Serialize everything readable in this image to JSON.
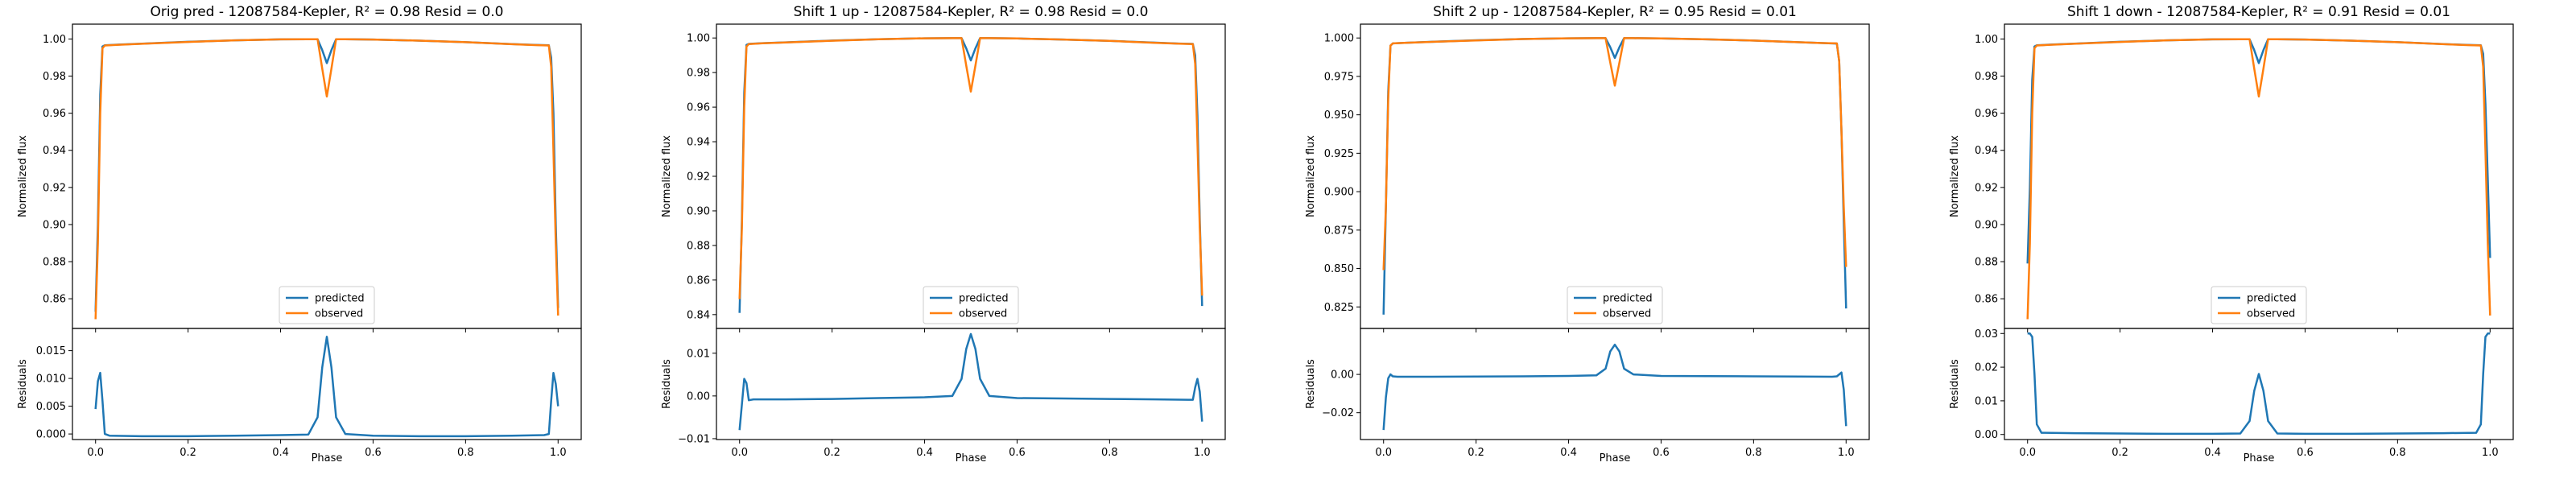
{
  "colors": {
    "predicted": "#1f77b4",
    "observed": "#ff7f0e"
  },
  "chart_data": [
    {
      "type": "line",
      "title_prefix": "Orig pred - 12087584-Kepler, ",
      "r2_label": "R² = 0.98",
      "resid_label": "Resid = 0.0",
      "xlabel": "Phase",
      "ylabel_top": "Normalized flux",
      "ylabel_bottom": "Residuals",
      "xlim": [
        -0.05,
        1.05
      ],
      "xticks": [
        0.0,
        0.2,
        0.4,
        0.6,
        0.8,
        1.0
      ],
      "xtick_labels": [
        "0.0",
        "0.2",
        "0.4",
        "0.6",
        "0.8",
        "1.0"
      ],
      "ylim_top": [
        0.844,
        1.008
      ],
      "yticks_top": [
        0.86,
        0.88,
        0.9,
        0.92,
        0.94,
        0.96,
        0.98,
        1.0
      ],
      "ytick_labels_top": [
        "0.86",
        "0.88",
        "0.90",
        "0.92",
        "0.94",
        "0.96",
        "0.98",
        "1.00"
      ],
      "ylim_bottom": [
        -0.001,
        0.019
      ],
      "yticks_bottom": [
        0.0,
        0.005,
        0.01,
        0.015
      ],
      "ytick_labels_bottom": [
        "0.000",
        "0.005",
        "0.010",
        "0.015"
      ],
      "legend": [
        "predicted",
        "observed"
      ],
      "series": {
        "predicted": {
          "x": [
            0.0,
            0.005,
            0.01,
            0.015,
            0.02,
            0.05,
            0.1,
            0.2,
            0.3,
            0.4,
            0.46,
            0.48,
            0.49,
            0.5,
            0.51,
            0.52,
            0.54,
            0.6,
            0.7,
            0.8,
            0.9,
            0.95,
            0.98,
            0.985,
            0.99,
            0.995,
            1.0
          ],
          "y": [
            0.853,
            0.9,
            0.97,
            0.996,
            0.9966,
            0.997,
            0.9975,
            0.9985,
            0.9993,
            0.9998,
            0.9999,
            0.9999,
            0.994,
            0.987,
            0.994,
            0.9999,
            0.9999,
            0.9997,
            0.9991,
            0.9983,
            0.9973,
            0.9968,
            0.9966,
            0.99,
            0.96,
            0.9,
            0.855
          ]
        },
        "observed": {
          "x": [
            0.0,
            0.005,
            0.01,
            0.015,
            0.02,
            0.05,
            0.1,
            0.2,
            0.3,
            0.4,
            0.46,
            0.48,
            0.49,
            0.5,
            0.51,
            0.52,
            0.54,
            0.6,
            0.7,
            0.8,
            0.9,
            0.95,
            0.98,
            0.985,
            0.99,
            0.995,
            1.0
          ],
          "y": [
            0.849,
            0.89,
            0.96,
            0.995,
            0.9965,
            0.9969,
            0.9974,
            0.9984,
            0.9993,
            0.9998,
            0.9999,
            0.9999,
            0.984,
            0.969,
            0.984,
            0.9999,
            0.9999,
            0.9997,
            0.9991,
            0.9983,
            0.9972,
            0.9967,
            0.9965,
            0.985,
            0.94,
            0.89,
            0.851
          ]
        },
        "residuals": {
          "x": [
            0.0,
            0.005,
            0.01,
            0.015,
            0.02,
            0.03,
            0.1,
            0.2,
            0.3,
            0.4,
            0.46,
            0.48,
            0.49,
            0.5,
            0.51,
            0.52,
            0.54,
            0.6,
            0.7,
            0.8,
            0.9,
            0.97,
            0.98,
            0.985,
            0.99,
            0.995,
            1.0
          ],
          "y": [
            0.0045,
            0.0095,
            0.011,
            0.006,
            0.0,
            -0.0003,
            -0.0004,
            -0.0004,
            -0.0003,
            -0.0002,
            -0.0001,
            0.003,
            0.012,
            0.0175,
            0.012,
            0.003,
            0.0,
            -0.0003,
            -0.0004,
            -0.0004,
            -0.0003,
            -0.0002,
            0.0,
            0.006,
            0.011,
            0.009,
            0.005
          ]
        }
      }
    },
    {
      "type": "line",
      "title_prefix": "Shift 1 up - 12087584-Kepler, ",
      "r2_label": "R² = 0.98",
      "resid_label": "Resid = 0.0",
      "xlabel": "Phase",
      "ylabel_top": "Normalized flux",
      "ylabel_bottom": "Residuals",
      "xlim": [
        -0.05,
        1.05
      ],
      "xticks": [
        0.0,
        0.2,
        0.4,
        0.6,
        0.8,
        1.0
      ],
      "xtick_labels": [
        "0.0",
        "0.2",
        "0.4",
        "0.6",
        "0.8",
        "1.0"
      ],
      "ylim_top": [
        0.832,
        1.008
      ],
      "yticks_top": [
        0.84,
        0.86,
        0.88,
        0.9,
        0.92,
        0.94,
        0.96,
        0.98,
        1.0
      ],
      "ytick_labels_top": [
        "0.84",
        "0.86",
        "0.88",
        "0.90",
        "0.92",
        "0.94",
        "0.96",
        "0.98",
        "1.00"
      ],
      "ylim_bottom": [
        -0.0102,
        0.0158
      ],
      "yticks_bottom": [
        -0.01,
        0.0,
        0.01
      ],
      "ytick_labels_bottom": [
        "−0.01",
        "0.00",
        "0.01"
      ],
      "legend": [
        "predicted",
        "observed"
      ],
      "series": {
        "predicted": {
          "x": [
            0.0,
            0.005,
            0.01,
            0.015,
            0.02,
            0.05,
            0.1,
            0.2,
            0.3,
            0.4,
            0.46,
            0.48,
            0.49,
            0.5,
            0.51,
            0.52,
            0.54,
            0.6,
            0.7,
            0.8,
            0.9,
            0.95,
            0.98,
            0.985,
            0.99,
            0.995,
            1.0
          ],
          "y": [
            0.841,
            0.895,
            0.968,
            0.996,
            0.9966,
            0.997,
            0.9975,
            0.9985,
            0.9993,
            0.9998,
            0.9999,
            0.9999,
            0.994,
            0.987,
            0.994,
            0.9999,
            0.9999,
            0.9997,
            0.9991,
            0.9983,
            0.9973,
            0.9968,
            0.9966,
            0.99,
            0.955,
            0.895,
            0.845
          ]
        },
        "observed": {
          "x": [
            0.0,
            0.005,
            0.01,
            0.015,
            0.02,
            0.05,
            0.1,
            0.2,
            0.3,
            0.4,
            0.46,
            0.48,
            0.49,
            0.5,
            0.51,
            0.52,
            0.54,
            0.6,
            0.7,
            0.8,
            0.9,
            0.95,
            0.98,
            0.985,
            0.99,
            0.995,
            1.0
          ],
          "y": [
            0.849,
            0.89,
            0.96,
            0.995,
            0.9965,
            0.9969,
            0.9974,
            0.9984,
            0.9993,
            0.9998,
            0.9999,
            0.9999,
            0.984,
            0.969,
            0.984,
            0.9999,
            0.9999,
            0.9997,
            0.9991,
            0.9983,
            0.9972,
            0.9967,
            0.9965,
            0.985,
            0.94,
            0.89,
            0.851
          ]
        },
        "residuals": {
          "x": [
            0.0,
            0.005,
            0.01,
            0.015,
            0.02,
            0.03,
            0.1,
            0.2,
            0.3,
            0.4,
            0.46,
            0.48,
            0.49,
            0.5,
            0.51,
            0.52,
            0.54,
            0.6,
            0.7,
            0.8,
            0.9,
            0.97,
            0.98,
            0.985,
            0.99,
            0.995,
            1.0
          ],
          "y": [
            -0.008,
            -0.002,
            0.004,
            0.003,
            -0.001,
            -0.0008,
            -0.0008,
            -0.0007,
            -0.0005,
            -0.0003,
            0.0,
            0.004,
            0.011,
            0.0145,
            0.011,
            0.004,
            0.0,
            -0.0005,
            -0.0006,
            -0.0007,
            -0.0008,
            -0.0009,
            -0.0009,
            0.002,
            0.004,
            0.001,
            -0.006
          ]
        }
      }
    },
    {
      "type": "line",
      "title_prefix": "Shift 2 up - 12087584-Kepler, ",
      "r2_label": "R² = 0.95",
      "resid_label": "Resid = 0.01",
      "xlabel": "Phase",
      "ylabel_top": "Normalized flux",
      "ylabel_bottom": "Residuals",
      "xlim": [
        -0.05,
        1.05
      ],
      "xticks": [
        0.0,
        0.2,
        0.4,
        0.6,
        0.8,
        1.0
      ],
      "xtick_labels": [
        "0.0",
        "0.2",
        "0.4",
        "0.6",
        "0.8",
        "1.0"
      ],
      "ylim_top": [
        0.811,
        1.009
      ],
      "yticks_top": [
        0.825,
        0.85,
        0.875,
        0.9,
        0.925,
        0.95,
        0.975,
        1.0
      ],
      "ytick_labels_top": [
        "0.825",
        "0.850",
        "0.875",
        "0.900",
        "0.925",
        "0.950",
        "0.975",
        "1.000"
      ],
      "ylim_bottom": [
        -0.034,
        0.024
      ],
      "yticks_bottom": [
        -0.02,
        0.0
      ],
      "ytick_labels_bottom": [
        "−0.02",
        "0.00"
      ],
      "legend": [
        "predicted",
        "observed"
      ],
      "series": {
        "predicted": {
          "x": [
            0.0,
            0.005,
            0.01,
            0.015,
            0.02,
            0.05,
            0.1,
            0.2,
            0.3,
            0.4,
            0.46,
            0.48,
            0.49,
            0.5,
            0.51,
            0.52,
            0.54,
            0.6,
            0.7,
            0.8,
            0.9,
            0.95,
            0.98,
            0.985,
            0.99,
            0.995,
            1.0
          ],
          "y": [
            0.82,
            0.89,
            0.965,
            0.995,
            0.9965,
            0.9969,
            0.9975,
            0.9985,
            0.9993,
            0.9998,
            0.9999,
            0.9999,
            0.994,
            0.987,
            0.994,
            0.9999,
            0.9999,
            0.9997,
            0.9991,
            0.9983,
            0.9972,
            0.9967,
            0.9964,
            0.985,
            0.94,
            0.88,
            0.824
          ]
        },
        "observed": {
          "x": [
            0.0,
            0.005,
            0.01,
            0.015,
            0.02,
            0.05,
            0.1,
            0.2,
            0.3,
            0.4,
            0.46,
            0.48,
            0.49,
            0.5,
            0.51,
            0.52,
            0.54,
            0.6,
            0.7,
            0.8,
            0.9,
            0.95,
            0.98,
            0.985,
            0.99,
            0.995,
            1.0
          ],
          "y": [
            0.849,
            0.89,
            0.96,
            0.995,
            0.9965,
            0.9969,
            0.9974,
            0.9984,
            0.9993,
            0.9998,
            0.9999,
            0.9999,
            0.984,
            0.969,
            0.984,
            0.9999,
            0.9999,
            0.9997,
            0.9991,
            0.9983,
            0.9972,
            0.9967,
            0.9965,
            0.985,
            0.94,
            0.89,
            0.851
          ]
        },
        "residuals": {
          "x": [
            0.0,
            0.005,
            0.01,
            0.015,
            0.02,
            0.03,
            0.1,
            0.2,
            0.3,
            0.4,
            0.46,
            0.48,
            0.49,
            0.5,
            0.51,
            0.52,
            0.54,
            0.6,
            0.7,
            0.8,
            0.9,
            0.97,
            0.98,
            0.985,
            0.99,
            0.995,
            1.0
          ],
          "y": [
            -0.029,
            -0.012,
            -0.002,
            0.0,
            -0.001,
            -0.0012,
            -0.0012,
            -0.0011,
            -0.001,
            -0.0008,
            -0.0005,
            0.003,
            0.012,
            0.0155,
            0.012,
            0.003,
            0.0,
            -0.0008,
            -0.0009,
            -0.001,
            -0.0011,
            -0.0012,
            -0.001,
            0.0,
            0.001,
            -0.008,
            -0.027
          ]
        }
      }
    },
    {
      "type": "line",
      "title_prefix": "Shift 1 down - 12087584-Kepler, ",
      "r2_label": "R² = 0.91",
      "resid_label": "Resid = 0.01",
      "xlabel": "Phase",
      "ylabel_top": "Normalized flux",
      "ylabel_bottom": "Residuals",
      "xlim": [
        -0.05,
        1.05
      ],
      "xticks": [
        0.0,
        0.2,
        0.4,
        0.6,
        0.8,
        1.0
      ],
      "xtick_labels": [
        "0.0",
        "0.2",
        "0.4",
        "0.6",
        "0.8",
        "1.0"
      ],
      "ylim_top": [
        0.844,
        1.008
      ],
      "yticks_top": [
        0.86,
        0.88,
        0.9,
        0.92,
        0.94,
        0.96,
        0.98,
        1.0
      ],
      "ytick_labels_top": [
        "0.86",
        "0.88",
        "0.90",
        "0.92",
        "0.94",
        "0.96",
        "0.98",
        "1.00"
      ],
      "ylim_bottom": [
        -0.0015,
        0.0315
      ],
      "yticks_bottom": [
        0.0,
        0.01,
        0.02,
        0.03
      ],
      "ytick_labels_bottom": [
        "0.00",
        "0.01",
        "0.02",
        "0.03"
      ],
      "legend": [
        "predicted",
        "observed"
      ],
      "series": {
        "predicted": {
          "x": [
            0.0,
            0.005,
            0.01,
            0.015,
            0.02,
            0.05,
            0.1,
            0.2,
            0.3,
            0.4,
            0.46,
            0.48,
            0.49,
            0.5,
            0.51,
            0.52,
            0.54,
            0.6,
            0.7,
            0.8,
            0.9,
            0.95,
            0.98,
            0.985,
            0.99,
            0.995,
            1.0
          ],
          "y": [
            0.879,
            0.92,
            0.978,
            0.996,
            0.9966,
            0.997,
            0.9975,
            0.9985,
            0.9993,
            0.9998,
            0.9999,
            0.9999,
            0.994,
            0.987,
            0.994,
            0.9999,
            0.9999,
            0.9997,
            0.9991,
            0.9983,
            0.9973,
            0.9968,
            0.9966,
            0.992,
            0.965,
            0.925,
            0.882
          ]
        },
        "observed": {
          "x": [
            0.0,
            0.005,
            0.01,
            0.015,
            0.02,
            0.05,
            0.1,
            0.2,
            0.3,
            0.4,
            0.46,
            0.48,
            0.49,
            0.5,
            0.51,
            0.52,
            0.54,
            0.6,
            0.7,
            0.8,
            0.9,
            0.95,
            0.98,
            0.985,
            0.99,
            0.995,
            1.0
          ],
          "y": [
            0.849,
            0.89,
            0.96,
            0.995,
            0.9965,
            0.9969,
            0.9974,
            0.9984,
            0.9993,
            0.9998,
            0.9999,
            0.9999,
            0.984,
            0.969,
            0.984,
            0.9999,
            0.9999,
            0.9997,
            0.9991,
            0.9983,
            0.9972,
            0.9967,
            0.9965,
            0.985,
            0.94,
            0.89,
            0.851
          ]
        },
        "residuals": {
          "x": [
            0.0,
            0.005,
            0.01,
            0.015,
            0.02,
            0.03,
            0.1,
            0.2,
            0.3,
            0.4,
            0.46,
            0.48,
            0.49,
            0.5,
            0.51,
            0.52,
            0.54,
            0.6,
            0.7,
            0.8,
            0.9,
            0.97,
            0.98,
            0.985,
            0.99,
            0.995,
            1.0
          ],
          "y": [
            0.03,
            0.03,
            0.029,
            0.018,
            0.003,
            0.0005,
            0.0004,
            0.0003,
            0.0002,
            0.0002,
            0.0003,
            0.004,
            0.013,
            0.018,
            0.013,
            0.004,
            0.0003,
            0.0002,
            0.0002,
            0.0003,
            0.0004,
            0.0005,
            0.003,
            0.018,
            0.029,
            0.03,
            0.03
          ]
        }
      }
    }
  ]
}
